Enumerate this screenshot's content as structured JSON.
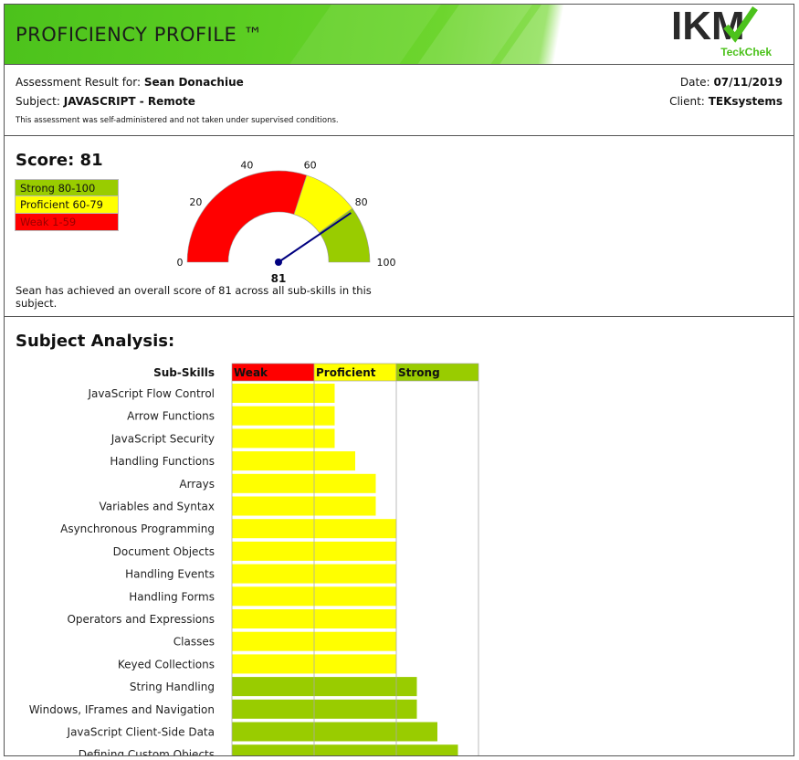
{
  "header": {
    "title": "PROFICIENCY PROFILE ™",
    "logo_text": "IKM",
    "logo_sub": "TeckChek"
  },
  "info": {
    "result_label": "Assessment Result for:",
    "candidate": "Sean Donachiue",
    "subject_label": "Subject:",
    "subject": "JAVASCRIPT - Remote",
    "note": "This assessment was self-administered and not taken under supervised conditions.",
    "date_label": "Date:",
    "date": "07/11/2019",
    "client_label": "Client:",
    "client": "TEKsystems"
  },
  "score": {
    "title": "Score: 81",
    "value": 81,
    "legend": [
      {
        "label": "Strong 80-100",
        "color": "#99cc00"
      },
      {
        "label": "Proficient 60-79",
        "color": "#ffff00"
      },
      {
        "label": "Weak 1-59",
        "color": "#ff0000"
      }
    ],
    "gauge_ticks": [
      "0",
      "20",
      "40",
      "60",
      "80",
      "100"
    ],
    "gauge_value_label": "81",
    "description": "Sean has achieved an overall score of 81 across all sub-skills in this subject."
  },
  "analysis": {
    "title": "Subject Analysis:",
    "header_label": "Sub-Skills",
    "bands": [
      {
        "label": "Weak",
        "color": "#ff0000"
      },
      {
        "label": "Proficient",
        "color": "#ffff00"
      },
      {
        "label": "Strong",
        "color": "#99cc00"
      }
    ]
  },
  "chart_data": {
    "type": "bar",
    "orientation": "horizontal",
    "title": "Subject Analysis:",
    "categories": [
      "JavaScript Flow Control",
      "Arrow Functions",
      "JavaScript Security",
      "Handling Functions",
      "Arrays",
      "Variables and Syntax",
      "Asynchronous Programming",
      "Document Objects",
      "Handling Events",
      "Handling Forms",
      "Operators and Expressions",
      "Classes",
      "Keyed Collections",
      "String Handling",
      "Windows, IFrames and Navigation",
      "JavaScript Client-Side Data",
      "Defining Custom Objects"
    ],
    "values": [
      62.5,
      62.5,
      62.5,
      75,
      87.5,
      87.5,
      100,
      100,
      100,
      100,
      100,
      100,
      100,
      112.5,
      112.5,
      125,
      137.5
    ],
    "colors": [
      "#ffff00",
      "#ffff00",
      "#ffff00",
      "#ffff00",
      "#ffff00",
      "#ffff00",
      "#ffff00",
      "#ffff00",
      "#ffff00",
      "#ffff00",
      "#ffff00",
      "#ffff00",
      "#ffff00",
      "#99cc00",
      "#99cc00",
      "#99cc00",
      "#99cc00"
    ],
    "xlim": [
      0,
      150
    ],
    "band_edges": [
      0,
      50,
      100,
      150
    ]
  }
}
